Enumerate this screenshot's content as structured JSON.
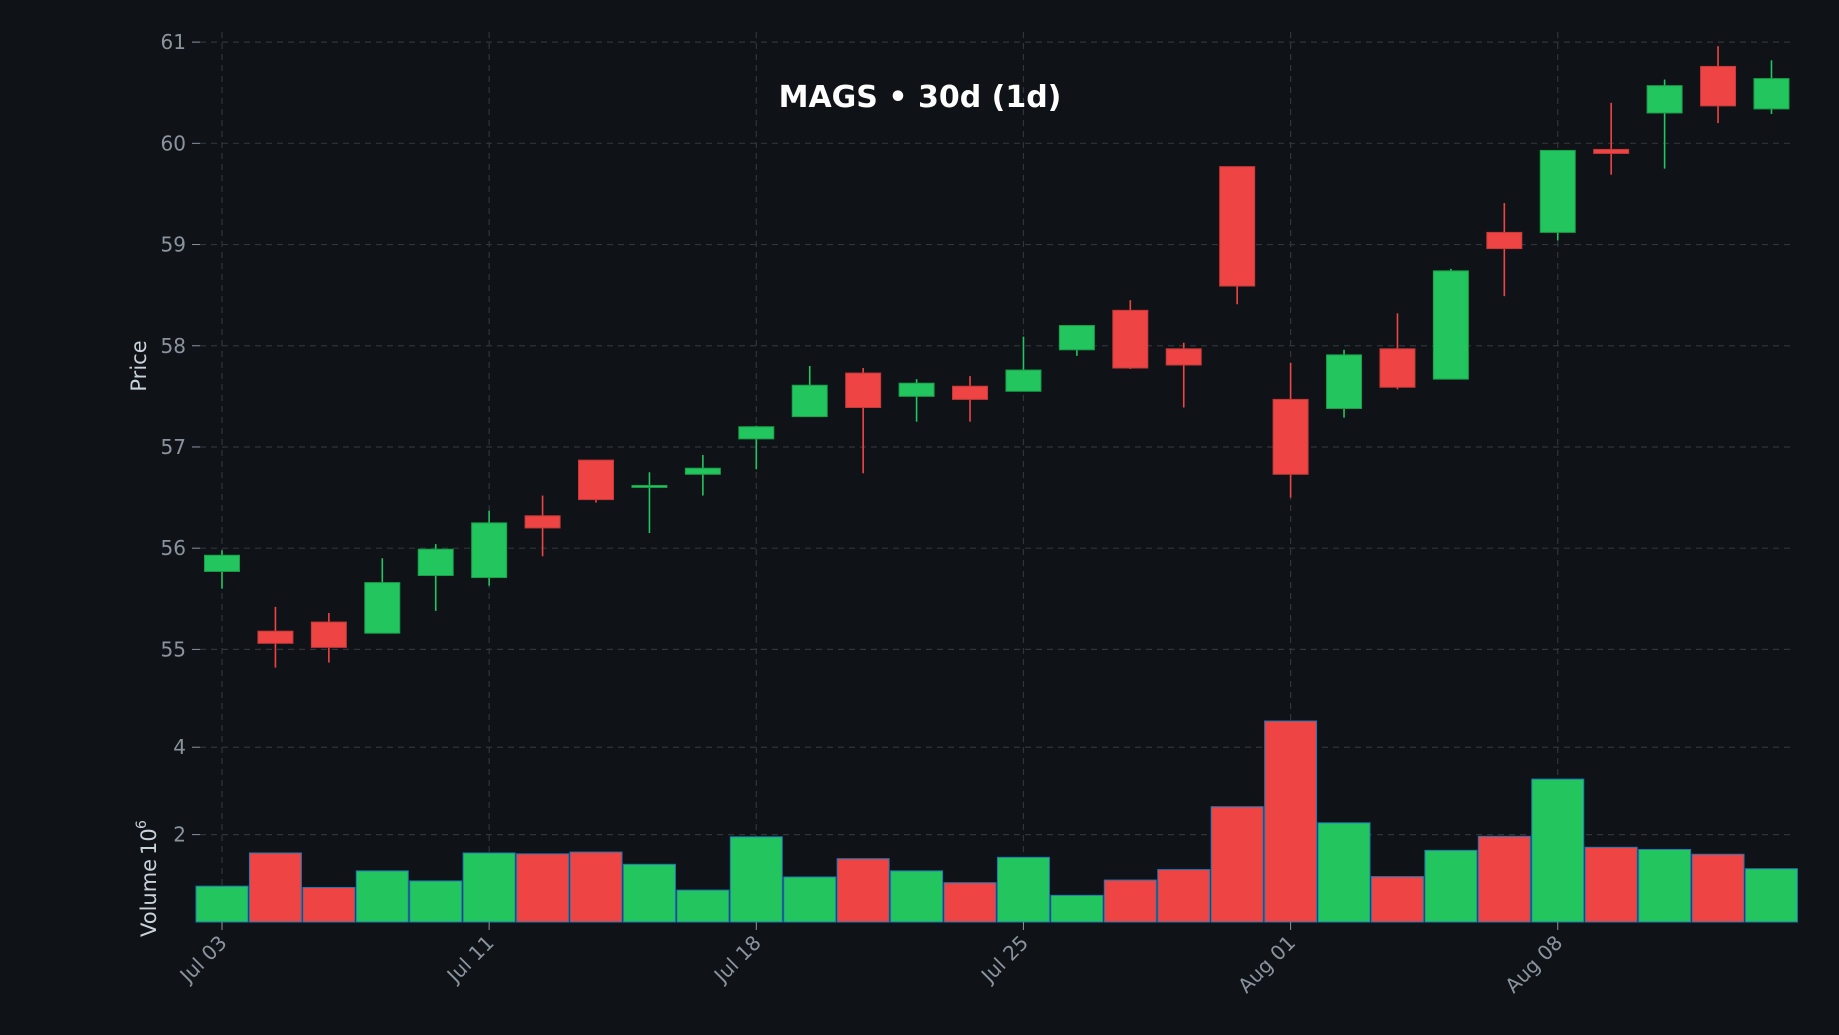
{
  "colors": {
    "background": "#0f1317",
    "up": "#22c55e",
    "down": "#ef4444",
    "grid": "#2f353c",
    "tick_text": "#8b949e",
    "label_text": "#c9d1d9",
    "title_text": "#ffffff",
    "volume_edge": "#1f77b4"
  },
  "chart_data": {
    "type": "candlestick",
    "title": "MAGS • 30d (1d)",
    "price_axis": {
      "label": "Price",
      "ylim": [
        54.5,
        61.1
      ],
      "ticks": [
        55,
        56,
        57,
        58,
        59,
        60,
        61
      ]
    },
    "volume_axis": {
      "label": "Volume",
      "scale_label": "10",
      "scale_exponent": "6",
      "ylim": [
        0,
        4.6
      ],
      "ticks": [
        2,
        4
      ]
    },
    "x_ticks": [
      "Jul 03",
      "Jul 11",
      "Jul 18",
      "Jul 25",
      "Aug 01",
      "Aug 08"
    ],
    "x_tick_indices": [
      0,
      5,
      10,
      15,
      20,
      25
    ],
    "grid": true,
    "candles": [
      {
        "date": "Jul 03",
        "open": 55.77,
        "high": 55.98,
        "low": 55.6,
        "close": 55.93,
        "volume": 0.82
      },
      {
        "date": "Jul 04",
        "open": 55.18,
        "high": 55.42,
        "low": 54.82,
        "close": 55.06,
        "volume": 1.58
      },
      {
        "date": "Jul 07",
        "open": 55.27,
        "high": 55.36,
        "low": 54.87,
        "close": 55.02,
        "volume": 0.79
      },
      {
        "date": "Jul 08",
        "open": 55.16,
        "high": 55.9,
        "low": 55.16,
        "close": 55.66,
        "volume": 1.17
      },
      {
        "date": "Jul 09",
        "open": 55.73,
        "high": 56.04,
        "low": 55.38,
        "close": 55.99,
        "volume": 0.94
      },
      {
        "date": "Jul 10",
        "open": 55.71,
        "high": 56.37,
        "low": 55.63,
        "close": 56.25,
        "volume": 1.58
      },
      {
        "date": "Jul 11",
        "open": 56.32,
        "high": 56.52,
        "low": 55.92,
        "close": 56.2,
        "volume": 1.56
      },
      {
        "date": "Jul 14",
        "open": 56.87,
        "high": 56.87,
        "low": 56.45,
        "close": 56.48,
        "volume": 1.6
      },
      {
        "date": "Jul 15",
        "open": 56.6,
        "high": 56.75,
        "low": 56.15,
        "close": 56.62,
        "volume": 1.32
      },
      {
        "date": "Jul 16",
        "open": 56.73,
        "high": 56.92,
        "low": 56.52,
        "close": 56.79,
        "volume": 0.73
      },
      {
        "date": "Jul 17",
        "open": 57.08,
        "high": 57.21,
        "low": 56.78,
        "close": 57.2,
        "volume": 1.95
      },
      {
        "date": "Jul 18",
        "open": 57.3,
        "high": 57.8,
        "low": 57.3,
        "close": 57.61,
        "volume": 1.03
      },
      {
        "date": "Jul 21",
        "open": 57.73,
        "high": 57.78,
        "low": 56.74,
        "close": 57.39,
        "volume": 1.45
      },
      {
        "date": "Jul 22",
        "open": 57.5,
        "high": 57.67,
        "low": 57.25,
        "close": 57.63,
        "volume": 1.17
      },
      {
        "date": "Jul 23",
        "open": 57.6,
        "high": 57.7,
        "low": 57.25,
        "close": 57.47,
        "volume": 0.9
      },
      {
        "date": "Jul 24",
        "open": 57.55,
        "high": 58.09,
        "low": 57.55,
        "close": 57.76,
        "volume": 1.48
      },
      {
        "date": "Jul 25",
        "open": 57.96,
        "high": 58.2,
        "low": 57.9,
        "close": 58.2,
        "volume": 0.61
      },
      {
        "date": "Jul 28",
        "open": 58.35,
        "high": 58.45,
        "low": 57.77,
        "close": 57.78,
        "volume": 0.96
      },
      {
        "date": "Jul 29",
        "open": 57.97,
        "high": 58.03,
        "low": 57.39,
        "close": 57.81,
        "volume": 1.2
      },
      {
        "date": "Jul 30",
        "open": 59.77,
        "high": 59.77,
        "low": 58.41,
        "close": 58.59,
        "volume": 2.64
      },
      {
        "date": "Jul 31",
        "open": 57.47,
        "high": 57.83,
        "low": 56.5,
        "close": 56.73,
        "volume": 4.6
      },
      {
        "date": "Aug 01",
        "open": 57.38,
        "high": 57.96,
        "low": 57.29,
        "close": 57.91,
        "volume": 2.27
      },
      {
        "date": "Aug 04",
        "open": 57.97,
        "high": 58.32,
        "low": 57.57,
        "close": 57.59,
        "volume": 1.04
      },
      {
        "date": "Aug 05",
        "open": 57.67,
        "high": 58.76,
        "low": 57.67,
        "close": 58.74,
        "volume": 1.64
      },
      {
        "date": "Aug 06",
        "open": 59.12,
        "high": 59.41,
        "low": 58.49,
        "close": 58.96,
        "volume": 1.96
      },
      {
        "date": "Aug 07",
        "open": 59.12,
        "high": 59.93,
        "low": 59.04,
        "close": 59.93,
        "volume": 3.27
      },
      {
        "date": "Aug 08",
        "open": 59.94,
        "high": 60.4,
        "low": 59.69,
        "close": 59.9,
        "volume": 1.71
      },
      {
        "date": "Aug 11",
        "open": 60.3,
        "high": 60.63,
        "low": 59.75,
        "close": 60.57,
        "volume": 1.66
      },
      {
        "date": "Aug 12",
        "open": 60.76,
        "high": 60.96,
        "low": 60.2,
        "close": 60.37,
        "volume": 1.55
      },
      {
        "date": "Aug 13",
        "open": 60.34,
        "high": 60.82,
        "low": 60.29,
        "close": 60.64,
        "volume": 1.22
      }
    ]
  }
}
